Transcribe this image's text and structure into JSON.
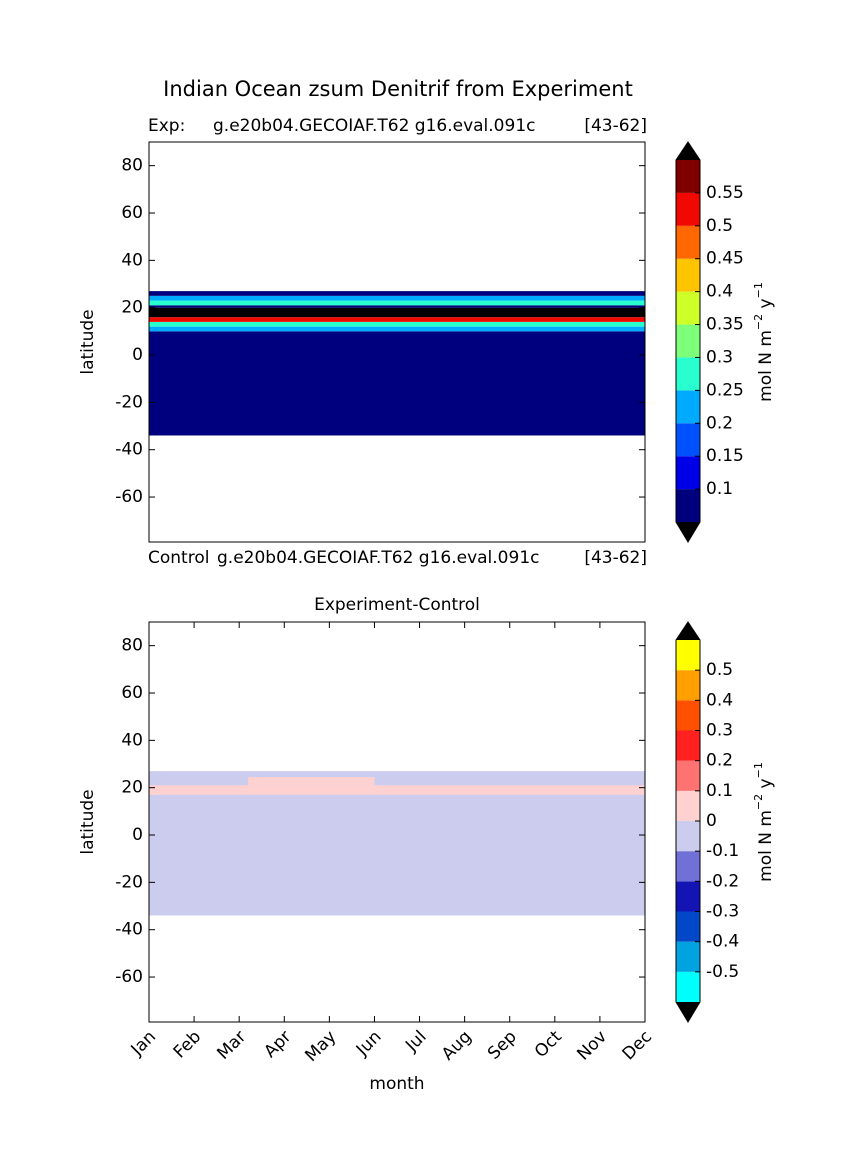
{
  "chart_data": [
    {
      "type": "contour",
      "title": "Indian Ocean zsum Denitrif from Experiment",
      "subtitle_left": "Exp:",
      "subtitle_mid": "g.e20b04.GECOIAF.T62 g16.eval.091c",
      "subtitle_right": "[43-62]",
      "ylabel": "latitude",
      "ylim": [
        -79,
        90
      ],
      "yticks": [
        80,
        60,
        40,
        20,
        0,
        -20,
        -40,
        -60
      ],
      "xlim": [
        0,
        11
      ],
      "levels": [
        0.05,
        0.1,
        0.15,
        0.2,
        0.25,
        0.3,
        0.35,
        0.4,
        0.45,
        0.5,
        0.55,
        0.6
      ],
      "colors": [
        "#00007f",
        "#0000e8",
        "#0050ff",
        "#00aaff",
        "#29ffce",
        "#7dff7a",
        "#ceff29",
        "#ffc400",
        "#ff6800",
        "#f10800",
        "#800000"
      ],
      "under_color": "#000000",
      "over_color": "#000000",
      "cbar_ticks": [
        0.1,
        0.15,
        0.2,
        0.25,
        0.3,
        0.35,
        0.4,
        0.45,
        0.5,
        0.55
      ],
      "cbar_label": [
        "mol N m",
        "−2",
        " y",
        "−1"
      ],
      "bands": [
        {
          "lat": [
            -34,
            10
          ],
          "months": [
            0,
            11
          ],
          "value": 0.07
        },
        {
          "lat": [
            10,
            12
          ],
          "months": [
            0,
            11
          ],
          "value": 0.22
        },
        {
          "lat": [
            12,
            14
          ],
          "months": [
            0,
            11
          ],
          "value": 0.27
        },
        {
          "lat": [
            14,
            16
          ],
          "months": [
            0,
            11
          ],
          "value": 0.52
        },
        {
          "lat": [
            16,
            20
          ],
          "months": [
            0,
            11
          ],
          "value": 0.7
        },
        {
          "lat": [
            20,
            21
          ],
          "months": [
            0,
            11
          ],
          "value": 0.07
        },
        {
          "lat": [
            21,
            23
          ],
          "months": [
            0,
            11
          ],
          "value": 0.27
        },
        {
          "lat": [
            23,
            25
          ],
          "months": [
            0,
            11
          ],
          "value": 0.22
        },
        {
          "lat": [
            25,
            27
          ],
          "months": [
            0,
            11
          ],
          "value": 0.07
        }
      ]
    },
    {
      "type": "contour",
      "title": "Experiment-Control",
      "subtitle_left": "Control",
      "subtitle_mid": "g.e20b04.GECOIAF.T62 g16.eval.091c",
      "subtitle_right": "[43-62]",
      "ylabel": "latitude",
      "xlabel": "month",
      "ylim": [
        -79,
        90
      ],
      "yticks": [
        80,
        60,
        40,
        20,
        0,
        -20,
        -40,
        -60
      ],
      "xlim": [
        0,
        11
      ],
      "categories": [
        "Jan",
        "Feb",
        "Mar",
        "Apr",
        "May",
        "Jun",
        "Jul",
        "Aug",
        "Sep",
        "Oct",
        "Nov",
        "Dec"
      ],
      "levels": [
        -0.6,
        -0.5,
        -0.4,
        -0.3,
        -0.2,
        -0.1,
        0,
        0.1,
        0.2,
        0.3,
        0.4,
        0.5,
        0.6
      ],
      "colors": [
        "#00ffff",
        "#00a2e0",
        "#0048c8",
        "#1414b4",
        "#7070d6",
        "#cccdee",
        "#ffd1d1",
        "#ff7272",
        "#ff2020",
        "#ff5000",
        "#ffa000",
        "#ffff00"
      ],
      "under_color": "#000000",
      "over_color": "#000000",
      "cbar_ticks": [
        0.5,
        0.4,
        0.3,
        0.2,
        0.1,
        0,
        -0.1,
        -0.2,
        -0.3,
        -0.4,
        -0.5
      ],
      "cbar_label": [
        "mol N m",
        "−2",
        " y",
        "−1"
      ],
      "bands": [
        {
          "lat": [
            -34,
            27
          ],
          "months": [
            0,
            11
          ],
          "value": -0.05
        },
        {
          "lat": [
            17,
            21
          ],
          "months": [
            0,
            11
          ],
          "value": 0.05
        },
        {
          "lat": [
            21,
            24.5
          ],
          "months": [
            2.2,
            5
          ],
          "value": 0.05
        }
      ]
    }
  ]
}
